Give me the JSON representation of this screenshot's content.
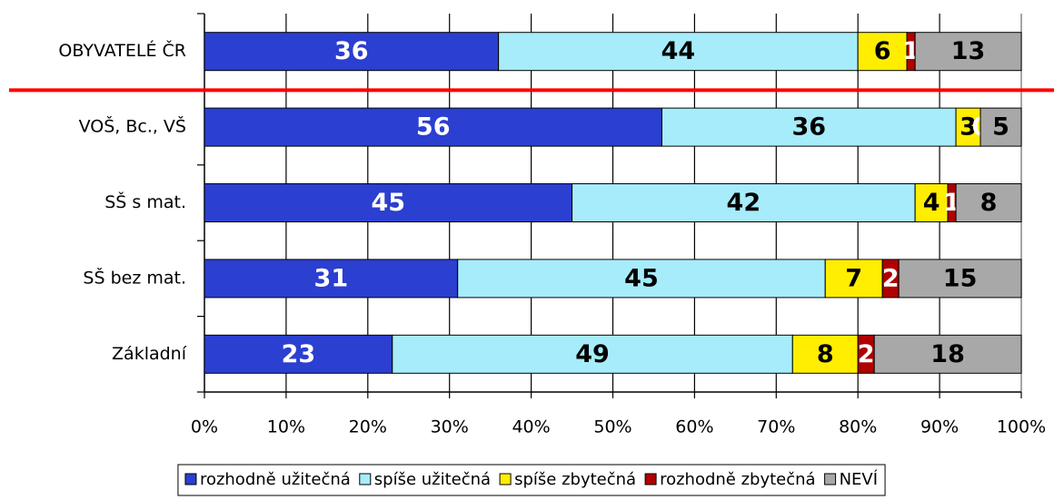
{
  "chart_data": {
    "type": "stacked_bar_horizontal",
    "categories": [
      "OBYVATELÉ ČR",
      "VOŠ, Bc., VŠ",
      "SŠ s mat.",
      "SŠ bez mat.",
      "Základní"
    ],
    "series": [
      {
        "name": "rozhodně užitečná",
        "color": "#2b3fd0",
        "label_color": "#ffffff",
        "values": [
          36,
          56,
          45,
          31,
          23
        ]
      },
      {
        "name": "spíše užitečná",
        "color": "#a6ecfb",
        "label_color": "#000000",
        "values": [
          44,
          36,
          42,
          45,
          49
        ]
      },
      {
        "name": "spíše zbytečná",
        "color": "#ffee00",
        "label_color": "#000000",
        "values": [
          6,
          3,
          4,
          7,
          8
        ]
      },
      {
        "name": "rozhodně zbytečná",
        "color": "#b00000",
        "label_color": "#ffffff",
        "values": [
          1,
          0,
          1,
          2,
          2
        ]
      },
      {
        "name": "NEVÍ",
        "color": "#a8a8a8",
        "label_color": "#000000",
        "values": [
          13,
          5,
          8,
          15,
          18
        ]
      }
    ],
    "xlim": [
      0,
      100
    ],
    "xticks": [
      {
        "value": 0,
        "label": "0%"
      },
      {
        "value": 10,
        "label": "10%"
      },
      {
        "value": 20,
        "label": "20%"
      },
      {
        "value": 30,
        "label": "30%"
      },
      {
        "value": 40,
        "label": "40%"
      },
      {
        "value": 50,
        "label": "50%"
      },
      {
        "value": 60,
        "label": "60%"
      },
      {
        "value": 70,
        "label": "70%"
      },
      {
        "value": 80,
        "label": "80%"
      },
      {
        "value": 90,
        "label": "90%"
      },
      {
        "value": 100,
        "label": "100%"
      }
    ],
    "grid": true,
    "legend": "bottom"
  }
}
